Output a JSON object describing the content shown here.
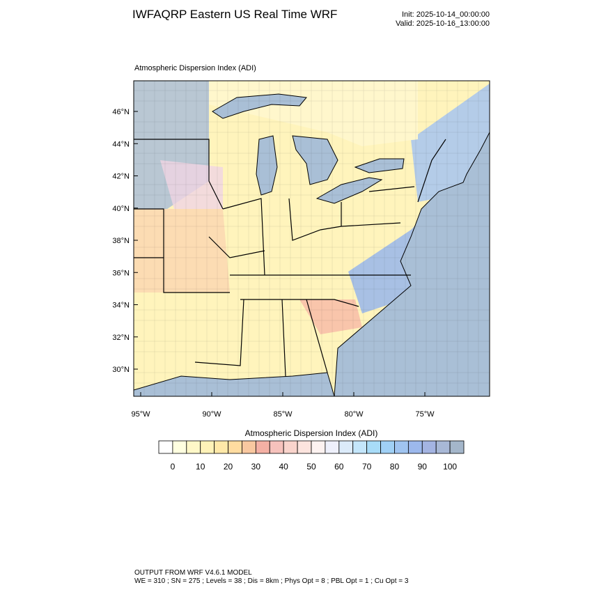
{
  "header": {
    "title": "IWFAQRP Eastern US Real Time WRF",
    "init": "Init: 2025-10-14_00:00:00",
    "valid": "Valid: 2025-10-16_13:00:00"
  },
  "map": {
    "title": "Atmospheric Dispersion Index   (ADI)",
    "lat_labels": [
      "46°N",
      "44°N",
      "42°N",
      "40°N",
      "38°N",
      "36°N",
      "34°N",
      "32°N",
      "30°N"
    ],
    "lon_labels": [
      "95°W",
      "90°W",
      "85°W",
      "80°W",
      "75°W"
    ]
  },
  "colorbar": {
    "title": "Atmospheric Dispersion Index  (ADI)",
    "labels": [
      0,
      10,
      20,
      30,
      40,
      50,
      60,
      70,
      80,
      90,
      100
    ],
    "colors": [
      "#ffffff",
      "#ffffe0",
      "#fff8c8",
      "#fff2b8",
      "#ffe8a8",
      "#ffdca0",
      "#f9c8a0",
      "#f4b0a4",
      "#f6c2bc",
      "#f9d4cc",
      "#fce4de",
      "#fdf2f0",
      "#eef0fb",
      "#dcebfa",
      "#c4e6fb",
      "#a8dcf8",
      "#a0d0f5",
      "#a0c4f0",
      "#9cb8ec",
      "#a4b4e2",
      "#a8b8d6",
      "#a4b6ca"
    ]
  },
  "footer": {
    "line1": "OUTPUT FROM WRF V4.6.1 MODEL",
    "line2": "WE = 310 ; SN = 275 ; Levels = 38 ; Dis = 8km ; Phys Opt = 8 ; PBL Opt = 1 ; Cu Opt = 3"
  }
}
